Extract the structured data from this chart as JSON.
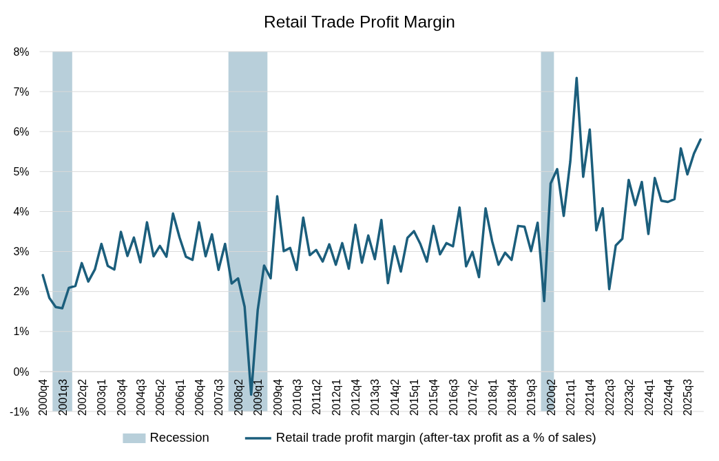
{
  "chart_data": {
    "type": "line",
    "title": "Retail Trade Profit Margin",
    "x": [
      "2000-11-15",
      "2001-02-15",
      "2001-05-15",
      "2001-08-15",
      "2001-11-15",
      "2002-02-15",
      "2002-05-15",
      "2002-08-15",
      "2002-11-15",
      "2003-02-15",
      "2003-05-15",
      "2003-08-15",
      "2003-11-15",
      "2004-02-15",
      "2004-05-15",
      "2004-08-15",
      "2004-11-15",
      "2005-02-15",
      "2005-05-15",
      "2005-08-15",
      "2005-11-15",
      "2006-02-15",
      "2006-05-15",
      "2006-08-15",
      "2006-11-15",
      "2007-02-15",
      "2007-05-15",
      "2007-08-15",
      "2007-11-15",
      "2008-02-15",
      "2008-05-15",
      "2008-08-15",
      "2008-11-15",
      "2009-02-15",
      "2009-05-15",
      "2009-08-15",
      "2009-11-15",
      "2010-02-15",
      "2010-05-15",
      "2010-08-15",
      "2010-11-15",
      "2011-02-15",
      "2011-05-15",
      "2011-08-15",
      "2011-11-15",
      "2012-02-15",
      "2012-05-15",
      "2012-08-15",
      "2012-11-15",
      "2013-02-15",
      "2013-05-15",
      "2013-08-15",
      "2013-11-15",
      "2014-02-15",
      "2014-05-15",
      "2014-08-15",
      "2014-11-15",
      "2015-02-15",
      "2015-05-15",
      "2015-08-15",
      "2015-11-15",
      "2016-02-15",
      "2016-05-15",
      "2016-08-15",
      "2016-11-15",
      "2017-02-15",
      "2017-05-15",
      "2017-08-15",
      "2017-11-15",
      "2018-02-15",
      "2018-05-15",
      "2018-08-15",
      "2018-11-15",
      "2019-02-15",
      "2019-05-15",
      "2019-08-15",
      "2019-11-15",
      "2020-02-15",
      "2020-05-15",
      "2020-08-15",
      "2020-11-15",
      "2021-02-15",
      "2021-05-15",
      "2021-08-15",
      "2021-11-15",
      "2022-02-15",
      "2022-05-15",
      "2022-08-15",
      "2022-11-15",
      "2023-02-15",
      "2023-05-15",
      "2023-08-15",
      "2023-11-15",
      "2024-02-15",
      "2024-05-15",
      "2024-08-15",
      "2024-11-15",
      "2025-02-15",
      "2025-05-15",
      "2025-08-15",
      "2025-11-15",
      "2026-02-15"
    ],
    "series": [
      {
        "name": "Retail trade profit margin (after-tax profit as a % of sales)",
        "color": "#1b5e7c",
        "values": [
          2.41,
          1.84,
          1.61,
          1.58,
          2.09,
          2.14,
          2.71,
          2.25,
          2.55,
          3.19,
          2.64,
          2.55,
          3.49,
          2.89,
          3.35,
          2.73,
          3.73,
          2.88,
          3.14,
          2.87,
          3.95,
          3.35,
          2.87,
          2.79,
          3.73,
          2.88,
          3.43,
          2.54,
          3.19,
          2.2,
          2.33,
          1.62,
          -0.58,
          1.54,
          2.65,
          2.33,
          4.38,
          3.01,
          3.09,
          2.54,
          3.85,
          2.91,
          3.04,
          2.75,
          3.18,
          2.67,
          3.21,
          2.57,
          3.67,
          2.72,
          3.4,
          2.81,
          3.79,
          2.21,
          3.13,
          2.5,
          3.34,
          3.51,
          3.19,
          2.75,
          3.64,
          2.93,
          3.21,
          3.13,
          4.1,
          2.63,
          2.99,
          2.36,
          4.08,
          3.26,
          2.67,
          2.97,
          2.79,
          3.64,
          3.62,
          3.01,
          3.72,
          1.76,
          4.7,
          5.06,
          3.89,
          5.25,
          7.34,
          4.87,
          6.05,
          3.53,
          4.08,
          2.06,
          3.15,
          3.32,
          4.79,
          4.16,
          4.74,
          3.44,
          4.84,
          4.27,
          4.24,
          4.31,
          5.58,
          4.93,
          5.45,
          5.8
        ]
      }
    ],
    "xlim": [
      "2000-10-01",
      "2026-04-01"
    ],
    "xticks": [
      {
        "value": "2000-11-15",
        "label": "2000q4"
      },
      {
        "value": "2001-08-15",
        "label": "2001q3"
      },
      {
        "value": "2002-05-15",
        "label": "2002q2"
      },
      {
        "value": "2003-02-15",
        "label": "2003q1"
      },
      {
        "value": "2003-11-15",
        "label": "2003q4"
      },
      {
        "value": "2004-08-15",
        "label": "2004q3"
      },
      {
        "value": "2005-05-15",
        "label": "2005q2"
      },
      {
        "value": "2006-02-15",
        "label": "2006q1"
      },
      {
        "value": "2006-11-15",
        "label": "2006q4"
      },
      {
        "value": "2007-08-15",
        "label": "2007q3"
      },
      {
        "value": "2008-05-15",
        "label": "2008q2"
      },
      {
        "value": "2009-02-15",
        "label": "2009q1"
      },
      {
        "value": "2009-11-15",
        "label": "2009q4"
      },
      {
        "value": "2010-08-15",
        "label": "2010q3"
      },
      {
        "value": "2011-05-15",
        "label": "2011q2"
      },
      {
        "value": "2012-02-15",
        "label": "2012q1"
      },
      {
        "value": "2012-11-15",
        "label": "2012q4"
      },
      {
        "value": "2013-08-15",
        "label": "2013q3"
      },
      {
        "value": "2014-05-15",
        "label": "2014q2"
      },
      {
        "value": "2015-02-15",
        "label": "2015q1"
      },
      {
        "value": "2015-11-15",
        "label": "2015q4"
      },
      {
        "value": "2016-08-15",
        "label": "2016q3"
      },
      {
        "value": "2017-05-15",
        "label": "2017q2"
      },
      {
        "value": "2018-02-15",
        "label": "2018q1"
      },
      {
        "value": "2018-11-15",
        "label": "2018q4"
      },
      {
        "value": "2019-08-15",
        "label": "2019q3"
      },
      {
        "value": "2020-05-15",
        "label": "2020q2"
      },
      {
        "value": "2021-02-15",
        "label": "2021q1"
      },
      {
        "value": "2021-11-15",
        "label": "2021q4"
      },
      {
        "value": "2022-08-15",
        "label": "2022q3"
      },
      {
        "value": "2023-05-15",
        "label": "2023q2"
      },
      {
        "value": "2024-02-15",
        "label": "2024q1"
      },
      {
        "value": "2024-11-15",
        "label": "2024q4"
      },
      {
        "value": "2025-08-15",
        "label": "2025q3"
      }
    ],
    "ylim": [
      -1,
      8
    ],
    "yticks": [
      {
        "value": -1,
        "label": "-1%"
      },
      {
        "value": 0,
        "label": "0%"
      },
      {
        "value": 1,
        "label": "1%"
      },
      {
        "value": 2,
        "label": "2%"
      },
      {
        "value": 3,
        "label": "3%"
      },
      {
        "value": 4,
        "label": "4%"
      },
      {
        "value": 5,
        "label": "5%"
      },
      {
        "value": 6,
        "label": "6%"
      },
      {
        "value": 7,
        "label": "7%"
      },
      {
        "value": 8,
        "label": "8%"
      }
    ],
    "bands": [
      {
        "axis": "x",
        "from": "2001-04-01",
        "to": "2002-01-01",
        "label": "Recession",
        "color": "#b8cfda"
      },
      {
        "axis": "x",
        "from": "2008-01-01",
        "to": "2009-07-01",
        "color": "#b8cfda"
      },
      {
        "axis": "x",
        "from": "2020-01-01",
        "to": "2020-07-01",
        "color": "#b8cfda"
      }
    ],
    "grid": "y",
    "legend": "bottom"
  }
}
